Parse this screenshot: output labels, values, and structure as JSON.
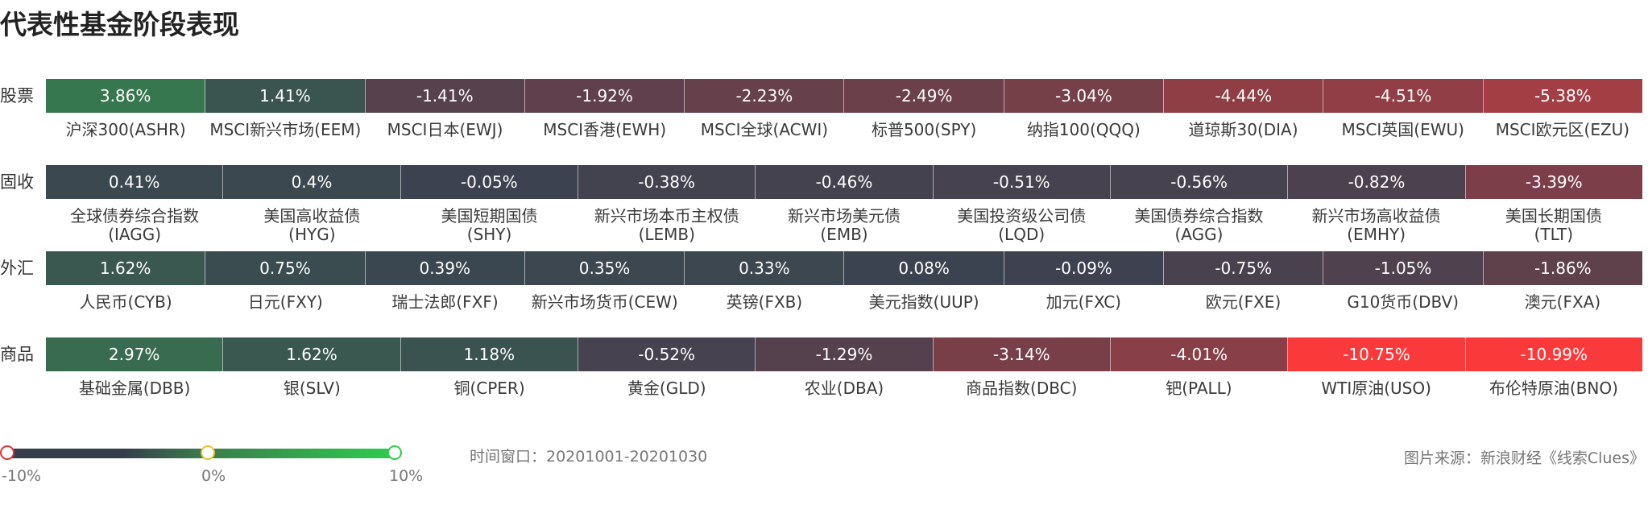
{
  "title": "代表性基金阶段表现",
  "chart_data": {
    "type": "heatmap",
    "groups": [
      {
        "label": "股票",
        "items": [
          {
            "name": "沪深300(ASHR)",
            "value": 3.86
          },
          {
            "name": "MSCI新兴市场(EEM)",
            "value": 1.41
          },
          {
            "name": "MSCI日本(EWJ)",
            "value": -1.41
          },
          {
            "name": "MSCI香港(EWH)",
            "value": -1.92
          },
          {
            "name": "MSCI全球(ACWI)",
            "value": -2.23
          },
          {
            "name": "标普500(SPY)",
            "value": -2.49
          },
          {
            "name": "纳指100(QQQ)",
            "value": -3.04
          },
          {
            "name": "道琼斯30(DIA)",
            "value": -4.44
          },
          {
            "name": "MSCI英国(EWU)",
            "value": -4.51
          },
          {
            "name": "MSCI欧元区(EZU)",
            "value": -5.38
          }
        ]
      },
      {
        "label": "固收",
        "items": [
          {
            "name": "全球债券综合指数\n(IAGG)",
            "value": 0.41
          },
          {
            "name": "美国高收益债\n(HYG)",
            "value": 0.4
          },
          {
            "name": "美国短期国债\n(SHY)",
            "value": -0.05
          },
          {
            "name": "新兴市场本币主权债\n(LEMB)",
            "value": -0.38
          },
          {
            "name": "新兴市场美元债\n(EMB)",
            "value": -0.46
          },
          {
            "name": "美国投资级公司债\n(LQD)",
            "value": -0.51
          },
          {
            "name": "美国债券综合指数\n(AGG)",
            "value": -0.56
          },
          {
            "name": "新兴市场高收益债\n(EMHY)",
            "value": -0.82
          },
          {
            "name": "美国长期国债\n(TLT)",
            "value": -3.39
          }
        ]
      },
      {
        "label": "外汇",
        "items": [
          {
            "name": "人民币(CYB)",
            "value": 1.62
          },
          {
            "name": "日元(FXY)",
            "value": 0.75
          },
          {
            "name": "瑞士法郎(FXF)",
            "value": 0.39
          },
          {
            "name": "新兴市场货币(CEW)",
            "value": 0.35
          },
          {
            "name": "英镑(FXB)",
            "value": 0.33
          },
          {
            "name": "美元指数(UUP)",
            "value": 0.08
          },
          {
            "name": "加元(FXC)",
            "value": -0.09
          },
          {
            "name": "欧元(FXE)",
            "value": -0.75
          },
          {
            "name": "G10货币(DBV)",
            "value": -1.05
          },
          {
            "name": "澳元(FXA)",
            "value": -1.86
          }
        ]
      },
      {
        "label": "商品",
        "items": [
          {
            "name": "基础金属(DBB)",
            "value": 2.97
          },
          {
            "name": "银(SLV)",
            "value": 1.62
          },
          {
            "name": "铜(CPER)",
            "value": 1.18
          },
          {
            "name": "黄金(GLD)",
            "value": -0.52
          },
          {
            "name": "农业(DBA)",
            "value": -1.29
          },
          {
            "name": "商品指数(DBC)",
            "value": -3.14
          },
          {
            "name": "钯(PALL)",
            "value": -4.01
          },
          {
            "name": "WTI原油(USO)",
            "value": -10.75
          },
          {
            "name": "布伦特原油(BNO)",
            "value": -10.99
          }
        ]
      }
    ],
    "color_scale": {
      "min": -10,
      "mid": 0,
      "max": 10,
      "min_color": "#fa3a3a",
      "mid_color": "#3c4250",
      "max_color": "#2ecc4e",
      "tick_labels": [
        "-10%",
        "0%",
        "10%"
      ]
    }
  },
  "footer": {
    "window": "时间窗口：20201001-20201030",
    "source": "图片来源：新浪财经《线索Clues》"
  }
}
